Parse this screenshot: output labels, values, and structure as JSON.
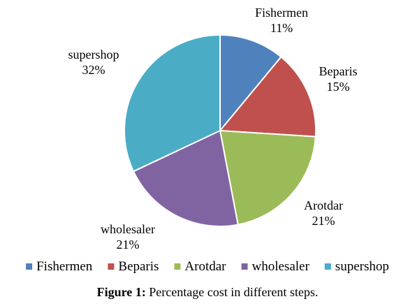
{
  "chart_data": {
    "type": "pie",
    "categories": [
      "Fishermen",
      "Beparis",
      "Arotdar",
      "wholesaler",
      "supershop"
    ],
    "values": [
      11,
      15,
      21,
      21,
      32
    ],
    "value_labels": [
      "11%",
      "15%",
      "21%",
      "21%",
      "32%"
    ],
    "colors": [
      "#4f81bd",
      "#c0504d",
      "#9bbb59",
      "#8064a2",
      "#4bacc6"
    ],
    "legend_placement": "bottom",
    "start": "top",
    "direction": "clockwise"
  },
  "caption": {
    "label": "Figure 1:",
    "text": "Percentage cost in different steps."
  }
}
